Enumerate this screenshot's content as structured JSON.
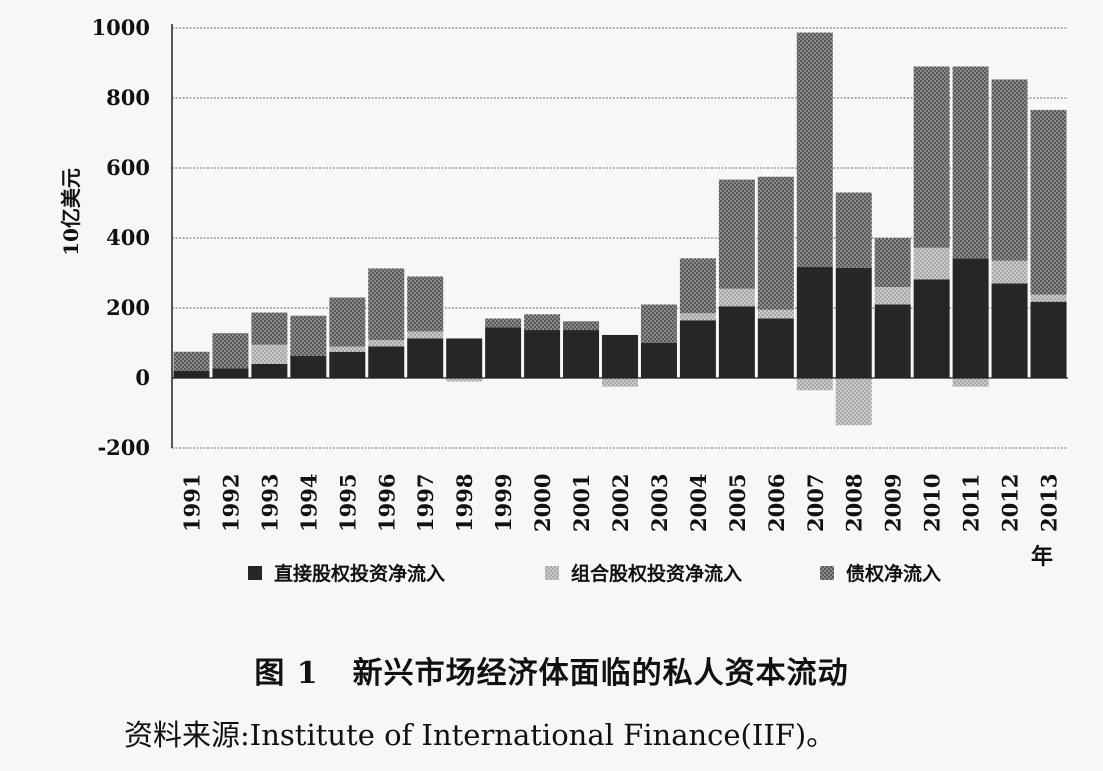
{
  "chart_data": {
    "type": "bar",
    "stacked": true,
    "ylabel": "10亿美元",
    "xlabel": "年",
    "ylim": [
      -200,
      1000
    ],
    "yticks": [
      -200,
      0,
      200,
      400,
      600,
      800,
      1000
    ],
    "categories": [
      "1991",
      "1992",
      "1993",
      "1994",
      "1995",
      "1996",
      "1997",
      "1998",
      "1999",
      "2000",
      "2001",
      "2002",
      "2003",
      "2004",
      "2005",
      "2006",
      "2007",
      "2008",
      "2009",
      "2010",
      "2011",
      "2012",
      "2013"
    ],
    "series": [
      {
        "name": "直接股权投资净流入",
        "color": "#222222",
        "values": [
          20,
          28,
          40,
          63,
          75,
          90,
          113,
          113,
          145,
          137,
          137,
          123,
          100,
          165,
          205,
          170,
          317,
          315,
          210,
          282,
          342,
          270,
          218
        ]
      },
      {
        "name": "组合股权投资净流入",
        "color": "#b8b8b8",
        "values": [
          0,
          0,
          55,
          0,
          15,
          18,
          20,
          -10,
          0,
          0,
          0,
          -25,
          0,
          20,
          50,
          25,
          -35,
          -135,
          50,
          90,
          -25,
          65,
          20
        ]
      },
      {
        "name": "债权净流入",
        "color": "#7a7a7a",
        "values": [
          55,
          100,
          92,
          115,
          140,
          205,
          157,
          0,
          25,
          45,
          25,
          0,
          110,
          157,
          312,
          380,
          670,
          215,
          140,
          518,
          548,
          518,
          528
        ]
      }
    ],
    "legend_position": "bottom",
    "grid": "horizontal dashed"
  },
  "caption": {
    "figure_no": "图 1",
    "title": "新兴市场经济体面临的私人资本流动"
  },
  "source": "资料来源:Institute of International Finance(IIF)。"
}
